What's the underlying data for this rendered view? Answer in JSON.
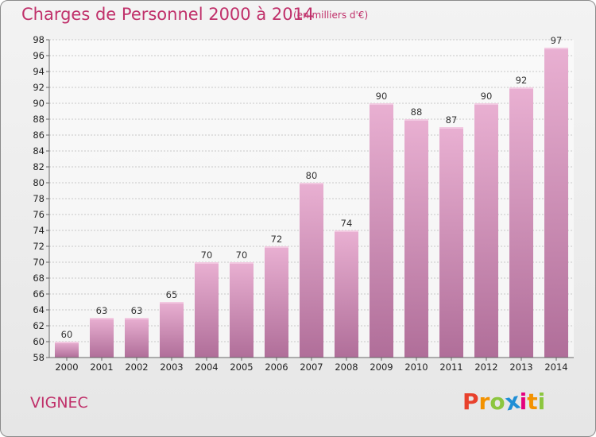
{
  "chart_data": {
    "type": "bar",
    "title": "Charges de Personnel 2000 à 2014",
    "subtitle": "(en milliers d'€)",
    "xlabel": "",
    "ylabel": "",
    "categories": [
      "2000",
      "2001",
      "2002",
      "2003",
      "2004",
      "2005",
      "2006",
      "2007",
      "2008",
      "2009",
      "2010",
      "2011",
      "2012",
      "2013",
      "2014"
    ],
    "values": [
      60,
      63,
      63,
      65,
      70,
      70,
      72,
      80,
      74,
      90,
      88,
      87,
      90,
      92,
      97
    ],
    "ylim": [
      58,
      98
    ],
    "ytick_step": 2,
    "grid": true,
    "bar_color": "#d58ab5"
  },
  "footer": {
    "commune": "VIGNEC",
    "brand": "Proxiti",
    "brand_letters": [
      "P",
      "r",
      "o",
      "x",
      "i",
      "t",
      "i"
    ],
    "brand_colors": [
      "#e8412c",
      "#f39200",
      "#8cc63f",
      "#1f8fd6",
      "#e5007e",
      "#f39200",
      "#8cc63f"
    ]
  }
}
